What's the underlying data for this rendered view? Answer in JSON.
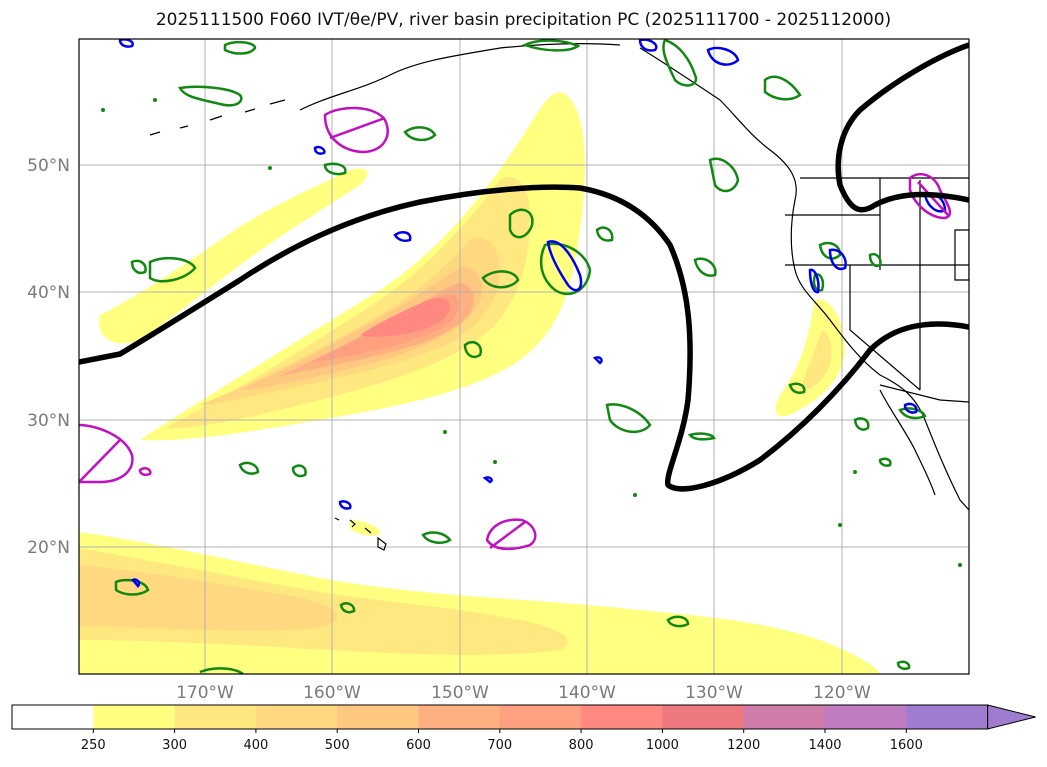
{
  "title": "2025111500 F060 IVT/θe/PV, river basin precipitation PC (2025111700 - 2025112000)",
  "map": {
    "lat_labels": [
      "50°N",
      "40°N",
      "30°N",
      "20°N"
    ],
    "lon_labels": [
      "170°W",
      "160°W",
      "150°W",
      "140°W",
      "130°W",
      "120°W"
    ]
  },
  "colorbar": {
    "labels": [
      "250",
      "300",
      "400",
      "500",
      "600",
      "700",
      "800",
      "1000",
      "1200",
      "1400",
      "1600"
    ],
    "colors": [
      "#ffffff",
      "#ffff80",
      "#ffe880",
      "#ffd880",
      "#ffc880",
      "#ffb080",
      "#ffa080",
      "#ff8880",
      "#ee7880",
      "#d07ca8",
      "#c07cc0",
      "#a07cd0"
    ],
    "extend": "max"
  },
  "chart_data": {
    "type": "contour-map",
    "title": "2025111500 F060 IVT/θe/PV, river basin precipitation PC (2025111700 - 2025112000)",
    "region": {
      "lon_range": [
        -180,
        -110
      ],
      "lat_range": [
        10,
        60
      ]
    },
    "ivt_levels": [
      250,
      300,
      400,
      500,
      600,
      700,
      800,
      1000,
      1200,
      1400,
      1600
    ],
    "ivt_max_region": {
      "lon": -148,
      "lat": 38,
      "approx_value": 800
    },
    "layers": [
      "IVT filled contours",
      "theta-e contour (black)",
      "PV contours (green/blue)",
      "precipitation PC (magenta)",
      "coastlines and borders"
    ]
  }
}
